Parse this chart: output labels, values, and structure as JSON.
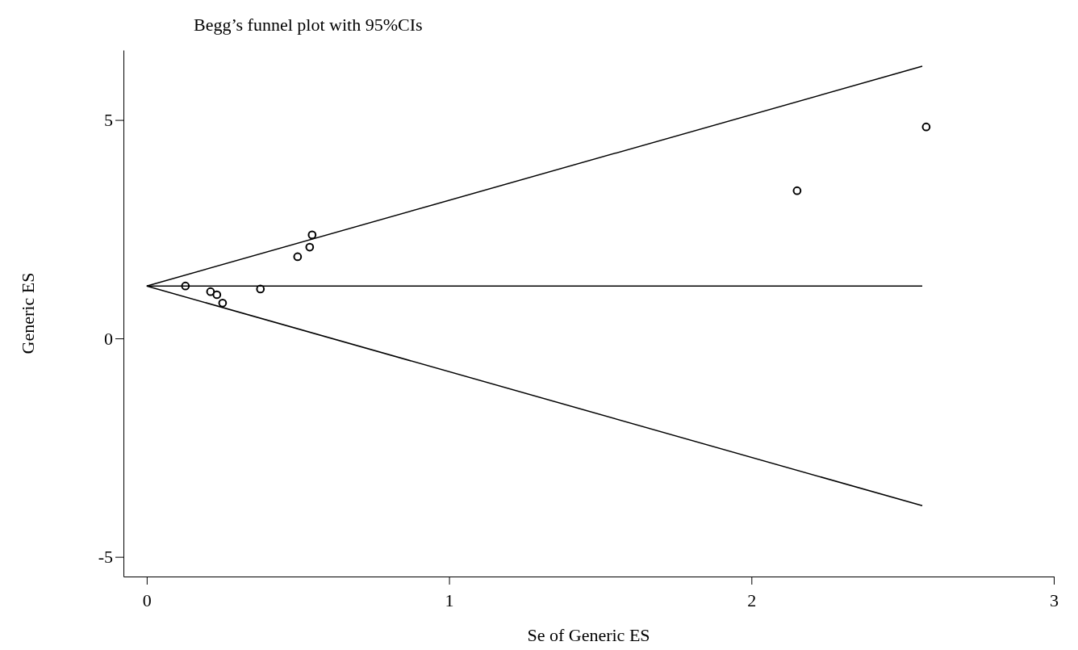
{
  "chart_data": {
    "type": "scatter",
    "title": "Begg’s funnel plot with 95%CIs",
    "xlabel": "Se of Generic ES",
    "ylabel": "Generic ES",
    "xlim": [
      -0.077,
      3
    ],
    "ylim": [
      -5.45,
      6.6
    ],
    "xticks": [
      0,
      1,
      2,
      3
    ],
    "yticks": [
      -5,
      0,
      5
    ],
    "grid": false,
    "marker": "circle",
    "series": [
      {
        "color": "#000000",
        "x": [
          0.128,
          0.211,
          0.232,
          0.251,
          0.376,
          0.499,
          0.539,
          0.547,
          2.151,
          2.578
        ],
        "values": [
          1.2,
          1.07,
          1.0,
          0.81,
          1.13,
          1.87,
          2.09,
          2.37,
          3.38,
          4.84
        ]
      },
      {
        "type": "line",
        "color": "#000000",
        "marker": "none",
        "line_style": "solid",
        "x": [
          0,
          2.565
        ],
        "values": [
          1.2,
          6.23
        ]
      },
      {
        "type": "line",
        "color": "#000000",
        "marker": "none",
        "line_style": "solid",
        "x": [
          0,
          2.565
        ],
        "values": [
          1.2,
          1.2
        ]
      },
      {
        "type": "line",
        "color": "#000000",
        "marker": "none",
        "line_style": "solid",
        "x": [
          0,
          2.565
        ],
        "values": [
          1.2,
          -3.83
        ]
      }
    ]
  }
}
